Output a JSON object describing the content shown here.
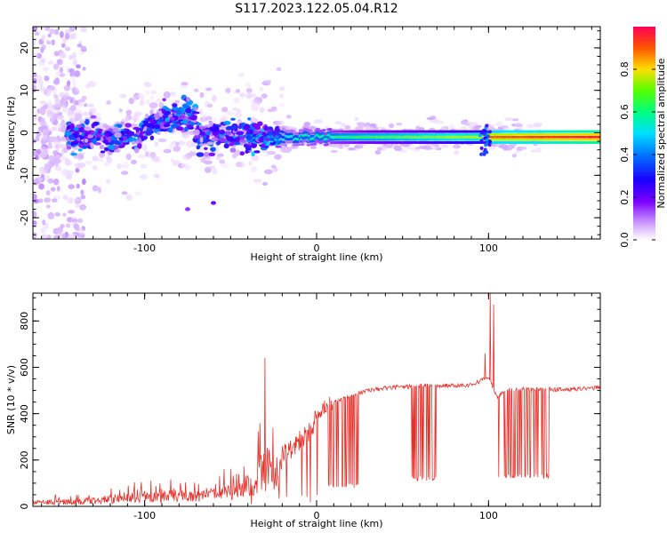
{
  "title": "S117.2023.122.05.04.R12",
  "colors": {
    "snr_line": "#e8302a",
    "axis": "#000000",
    "spectrum_ramp": [
      "#ffffff",
      "#e6ccff",
      "#c9a0ff",
      "#7a00ff",
      "#2a00ff",
      "#0088ff",
      "#00e5ff",
      "#00ff66",
      "#9cff00",
      "#ffd000",
      "#ff5a00",
      "#ff0044"
    ]
  },
  "chart_data": [
    {
      "type": "heatmap",
      "title": "",
      "xlabel": "Height of straight line (km)",
      "ylabel": "Frequency (Hz)",
      "xlim": [
        -165,
        165
      ],
      "ylim": [
        -25,
        25
      ],
      "xticks": [
        -100,
        0,
        100
      ],
      "xtick_labels": [
        "-100",
        "0",
        "100"
      ],
      "yticks": [
        -20,
        -10,
        0,
        10,
        20
      ],
      "ytick_labels": [
        "-20",
        "-10",
        "0",
        "10",
        "20"
      ],
      "colorbar": {
        "label": "Normalized spectral amplitude",
        "range": [
          0,
          1
        ],
        "ticks": [
          0.0,
          0.2,
          0.4,
          0.6,
          0.8
        ],
        "tick_labels": [
          "0.0",
          "0.2",
          "0.4",
          "0.6",
          "0.8"
        ]
      },
      "features": {
        "main_ridge_frequency_hz": -1,
        "ridge_start_km": -20,
        "ridge_end_km": 165,
        "turbulent_band_km": [
          -145,
          -30
        ],
        "scatter_region_km": [
          -165,
          -140
        ]
      }
    },
    {
      "type": "line",
      "title": "",
      "xlabel": "Height of straight line (km)",
      "ylabel": "SNR (10 * v/v)",
      "xlim": [
        -165,
        165
      ],
      "ylim": [
        0,
        920
      ],
      "xticks": [
        -100,
        0,
        100
      ],
      "xtick_labels": [
        "-100",
        "0",
        "100"
      ],
      "yticks": [
        0,
        200,
        400,
        600,
        800
      ],
      "ytick_labels": [
        "0",
        "200",
        "400",
        "600",
        "800"
      ],
      "series": [
        {
          "envelope_x": [
            -165,
            -140,
            -120,
            -100,
            -80,
            -60,
            -45,
            -35,
            -25,
            -15,
            -5,
            0,
            10,
            20,
            30,
            40,
            50,
            60,
            70,
            80,
            90,
            95,
            100,
            105,
            110,
            120,
            130,
            140,
            150,
            160,
            165
          ],
          "envelope_y": [
            15,
            20,
            30,
            40,
            45,
            50,
            70,
            120,
            180,
            250,
            320,
            380,
            450,
            480,
            500,
            510,
            515,
            520,
            520,
            522,
            525,
            540,
            560,
            470,
            500,
            505,
            505,
            505,
            505,
            510,
            515
          ],
          "spikes": [
            {
              "x": -30,
              "y": 640
            },
            {
              "x": 101,
              "y": 920
            },
            {
              "x": 103,
              "y": 870
            },
            {
              "x": 98,
              "y": 660
            }
          ],
          "dropouts": [
            {
              "from": 5,
              "to": 25,
              "y": 80
            },
            {
              "from": 55,
              "to": 70,
              "y": 110
            },
            {
              "from": 105,
              "to": 135,
              "y": 120
            }
          ]
        }
      ]
    }
  ]
}
